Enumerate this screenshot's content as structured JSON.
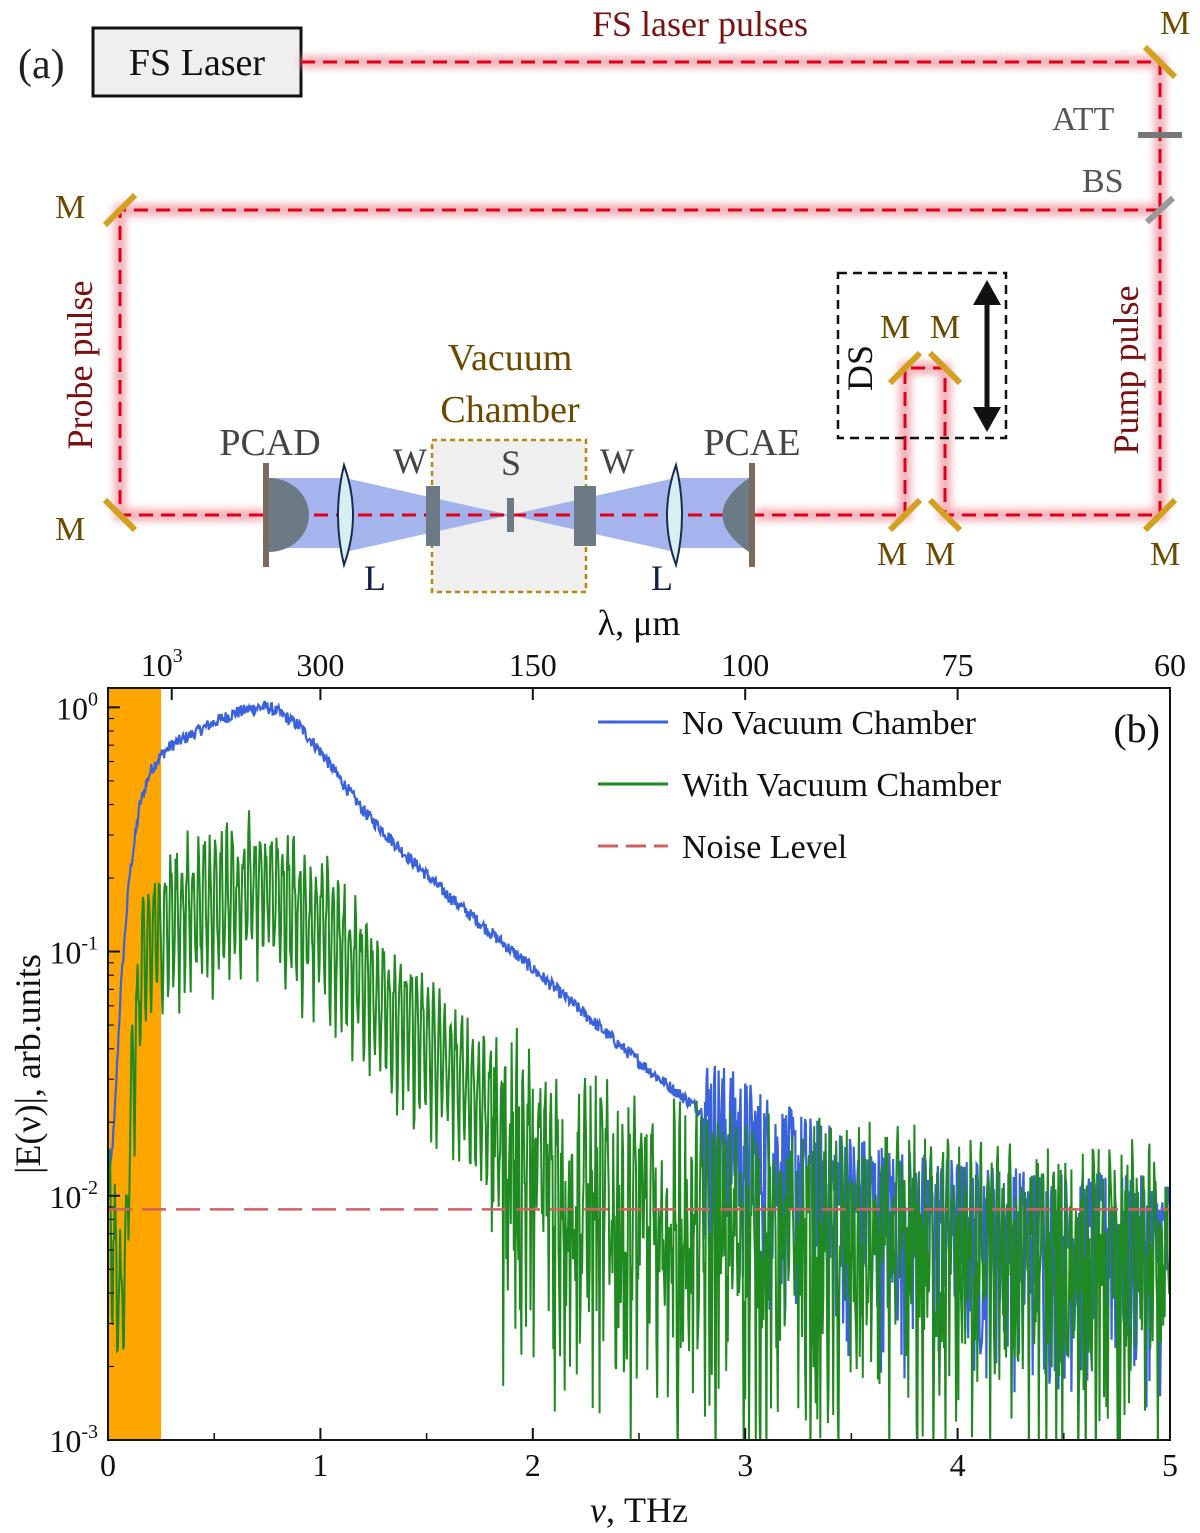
{
  "schematic": {
    "panel_label": "(a)",
    "laser_label": "FS Laser",
    "beam_label": "FS laser pulses",
    "probe_label": "Probe pulse",
    "pump_label": "Pump pulse",
    "mirror_label": "M",
    "att_label": "ATT",
    "bs_label": "BS",
    "ds_label": "DS",
    "chamber_label_1": "Vacuum",
    "chamber_label_2": "Chamber",
    "pcad_label": "PCAD",
    "pcae_label": "PCAE",
    "window_label": "W",
    "sample_label": "S",
    "lens_label": "L",
    "colors": {
      "beam": "#e0001a",
      "beam_glow": "#f4a0a8",
      "mirror": "#d4a020",
      "thz": "#8fa2e8",
      "label_dark_red": "#7a1010",
      "label_gold": "#6b4a00"
    }
  },
  "chart_data": {
    "type": "line",
    "panel_label": "(b)",
    "xlabel_italic": "ν",
    "xlabel_rest": ", THz",
    "ylabel": "|E(ν)|, arb.units",
    "top_axis_label": "λ, μm",
    "xlim": [
      0,
      5
    ],
    "ylim": [
      0.001,
      1.2
    ],
    "y_scale": "log",
    "grid": false,
    "legend_position": "top-right",
    "x_ticks": [
      {
        "value": 0,
        "label": "0"
      },
      {
        "value": 1,
        "label": "1"
      },
      {
        "value": 2,
        "label": "2"
      },
      {
        "value": 3,
        "label": "3"
      },
      {
        "value": 4,
        "label": "4"
      },
      {
        "value": 5,
        "label": "5"
      }
    ],
    "y_ticks": [
      {
        "value": 1,
        "base": "10",
        "exp": "0"
      },
      {
        "value": 0.1,
        "base": "10",
        "exp": "-1"
      },
      {
        "value": 0.01,
        "base": "10",
        "exp": "-2"
      },
      {
        "value": 0.001,
        "base": "10",
        "exp": "-3"
      }
    ],
    "top_ticks": [
      {
        "wavelength_um": 1000,
        "freq_thz": 0.3,
        "base": "10",
        "exp": "3"
      },
      {
        "wavelength_um": 300,
        "freq_thz": 1.0,
        "label": "300"
      },
      {
        "wavelength_um": 150,
        "freq_thz": 2.0,
        "label": "150"
      },
      {
        "wavelength_um": 100,
        "freq_thz": 3.0,
        "label": "100"
      },
      {
        "wavelength_um": 75,
        "freq_thz": 4.0,
        "label": "75"
      },
      {
        "wavelength_um": 60,
        "freq_thz": 5.0,
        "label": "60"
      }
    ],
    "highlight_band": {
      "x_from": 0.0,
      "x_to": 0.25,
      "color": "#ffa500"
    },
    "series": [
      {
        "name": "No Vacuum Chamber",
        "color": "#3a62dc",
        "x": [
          0.0,
          0.03,
          0.06,
          0.1,
          0.15,
          0.2,
          0.25,
          0.3,
          0.4,
          0.5,
          0.6,
          0.7,
          0.75,
          0.8,
          0.9,
          1.0,
          1.1,
          1.2,
          1.4,
          1.6,
          1.8,
          2.0,
          2.2,
          2.4,
          2.6,
          2.8,
          3.0,
          3.2,
          3.4,
          3.6,
          3.8,
          4.0,
          4.2,
          4.4,
          4.6,
          4.8,
          5.0
        ],
        "y": [
          0.01,
          0.02,
          0.07,
          0.2,
          0.4,
          0.55,
          0.64,
          0.7,
          0.78,
          0.87,
          0.95,
          1.0,
          1.0,
          0.96,
          0.84,
          0.66,
          0.5,
          0.38,
          0.25,
          0.17,
          0.12,
          0.085,
          0.06,
          0.042,
          0.03,
          0.022,
          0.017,
          0.013,
          0.011,
          0.0095,
          0.0085,
          0.008,
          0.0075,
          0.0072,
          0.007,
          0.0068,
          0.0066
        ]
      },
      {
        "name": "With Vacuum Chamber",
        "color": "#1f8a1f",
        "x": [
          0.0,
          0.03,
          0.06,
          0.08,
          0.1,
          0.15,
          0.2,
          0.3,
          0.4,
          0.5,
          0.6,
          0.7,
          0.8,
          0.9,
          1.0,
          1.1,
          1.2,
          1.3,
          1.4,
          1.5,
          1.6,
          1.7,
          1.8,
          1.9,
          2.0,
          2.2,
          2.4,
          2.6,
          2.8,
          3.0,
          3.2,
          3.4,
          3.6,
          3.8,
          4.0,
          4.2,
          4.4,
          4.6,
          4.8,
          5.0
        ],
        "y": [
          0.01,
          0.006,
          0.004,
          0.005,
          0.02,
          0.08,
          0.12,
          0.15,
          0.17,
          0.18,
          0.19,
          0.2,
          0.19,
          0.16,
          0.14,
          0.11,
          0.085,
          0.068,
          0.055,
          0.045,
          0.037,
          0.03,
          0.024,
          0.019,
          0.015,
          0.012,
          0.01,
          0.009,
          0.0085,
          0.008,
          0.0075,
          0.0072,
          0.007,
          0.0068,
          0.0066,
          0.0064,
          0.0062,
          0.006,
          0.0059,
          0.0058
        ]
      },
      {
        "name": "Noise Level",
        "color": "#d06060",
        "style": "dashed",
        "x": [
          0.0,
          5.0
        ],
        "y": [
          0.0088,
          0.0088
        ]
      }
    ]
  }
}
